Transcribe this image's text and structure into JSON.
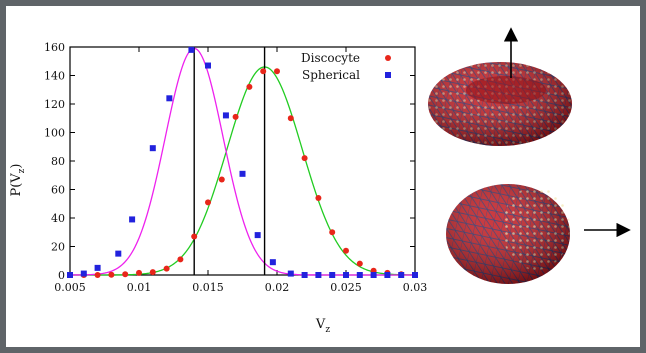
{
  "chart_data": {
    "type": "scatter",
    "xlabel": "V",
    "xlabel_sub": "z",
    "ylabel": "P(V",
    "ylabel_sub": "z",
    "ylabel_close": ")",
    "xlim": [
      0.005,
      0.03
    ],
    "ylim": [
      0,
      160
    ],
    "x_ticks": [
      "0.005",
      "0.01",
      "0.015",
      "0.02",
      "0.025",
      "0.03"
    ],
    "y_ticks": [
      "0",
      "20",
      "40",
      "60",
      "80",
      "100",
      "120",
      "140",
      "160"
    ],
    "legend_position": "top-right",
    "series": [
      {
        "name": "Discocyte",
        "marker": "circle",
        "color": "#e8261a",
        "fit_color": "#22cc22",
        "fit_mean": 0.0191,
        "fit_sigma": 0.00272,
        "fit_peak": 146,
        "points": [
          [
            0.005,
            0
          ],
          [
            0.006,
            0
          ],
          [
            0.007,
            0
          ],
          [
            0.008,
            0.2
          ],
          [
            0.009,
            0.5
          ],
          [
            0.01,
            1.5
          ],
          [
            0.011,
            2
          ],
          [
            0.012,
            4.5
          ],
          [
            0.013,
            11
          ],
          [
            0.014,
            27
          ],
          [
            0.015,
            51
          ],
          [
            0.016,
            67
          ],
          [
            0.017,
            111
          ],
          [
            0.018,
            132
          ],
          [
            0.019,
            143
          ],
          [
            0.02,
            143
          ],
          [
            0.021,
            110
          ],
          [
            0.022,
            82
          ],
          [
            0.023,
            54
          ],
          [
            0.024,
            30
          ],
          [
            0.025,
            17
          ],
          [
            0.026,
            8
          ],
          [
            0.027,
            3
          ],
          [
            0.028,
            1.5
          ],
          [
            0.029,
            0.5
          ],
          [
            0.03,
            0
          ]
        ]
      },
      {
        "name": "Spherical",
        "marker": "square",
        "color": "#2222dd",
        "fit_color": "#ee22ee",
        "fit_mean": 0.014,
        "fit_sigma": 0.0021,
        "fit_peak": 159,
        "points": [
          [
            0.005,
            0
          ],
          [
            0.006,
            1
          ],
          [
            0.007,
            5
          ],
          [
            0.0085,
            15
          ],
          [
            0.0095,
            39
          ],
          [
            0.011,
            89
          ],
          [
            0.0122,
            124
          ],
          [
            0.0138,
            158
          ],
          [
            0.015,
            147
          ],
          [
            0.0163,
            112
          ],
          [
            0.0175,
            71
          ],
          [
            0.0186,
            28
          ],
          [
            0.0197,
            9
          ],
          [
            0.021,
            1
          ],
          [
            0.022,
            0
          ],
          [
            0.023,
            0
          ],
          [
            0.024,
            0
          ],
          [
            0.025,
            0
          ],
          [
            0.026,
            0
          ],
          [
            0.027,
            0
          ],
          [
            0.028,
            0
          ],
          [
            0.029,
            0
          ],
          [
            0.03,
            0
          ]
        ]
      }
    ],
    "vertical_lines": [
      0.014,
      0.0191
    ]
  },
  "illustrations": [
    {
      "shape": "discocyte",
      "arrow": "up"
    },
    {
      "shape": "spherical",
      "arrow": "right"
    }
  ]
}
